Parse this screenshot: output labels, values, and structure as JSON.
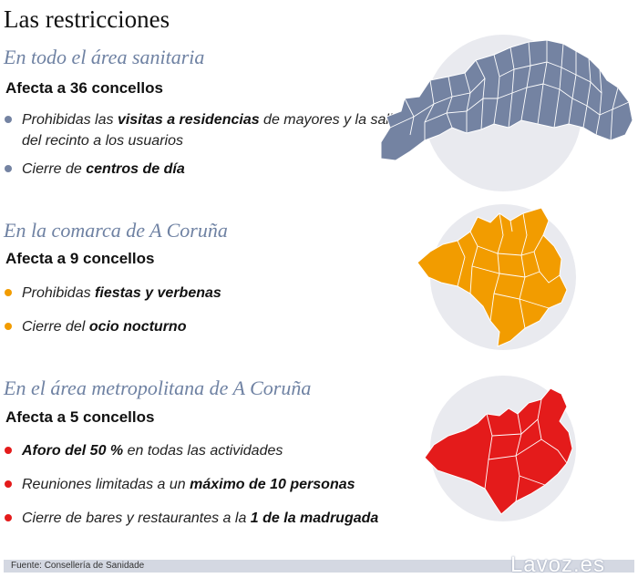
{
  "title": "Las restricciones",
  "colors": {
    "heading": "#6f82a3",
    "health_area": "#7483a2",
    "comarca": "#f29c00",
    "metro": "#e41b1b",
    "circle_bg": "#e9eaef"
  },
  "sections": [
    {
      "heading": "En todo el área sanitaria",
      "affects": "Afecta a 36 concellos",
      "bullets": [
        {
          "before": "Prohibidas las ",
          "bold": "visitas a residencias",
          "after": " de mayores y la salida del recinto a los usuarios"
        },
        {
          "before": "Cierre de ",
          "bold": "centros de día",
          "after": ""
        }
      ]
    },
    {
      "heading": "En la comarca de A Coruña",
      "affects": "Afecta a 9 concellos",
      "bullets": [
        {
          "before": "Prohibidas ",
          "bold": "fiestas y verbenas",
          "after": ""
        },
        {
          "before": "Cierre del ",
          "bold": "ocio nocturno",
          "after": ""
        }
      ]
    },
    {
      "heading": "En el área metropolitana de A Coruña",
      "affects": "Afecta a 5 concellos",
      "bullets": [
        {
          "before": "",
          "bold": "Aforo del 50 %",
          "after": " en todas las actividades"
        },
        {
          "before": "Reuniones limitadas a un ",
          "bold": "máximo de 10 personas",
          "after": ""
        },
        {
          "before": "Cierre de bares y restaurantes a la ",
          "bold": "1 de la madrugada",
          "after": ""
        }
      ]
    }
  ],
  "footer": {
    "source": "Fuente:  Consellería de Sanidade",
    "logo": "Lavoz.es"
  }
}
